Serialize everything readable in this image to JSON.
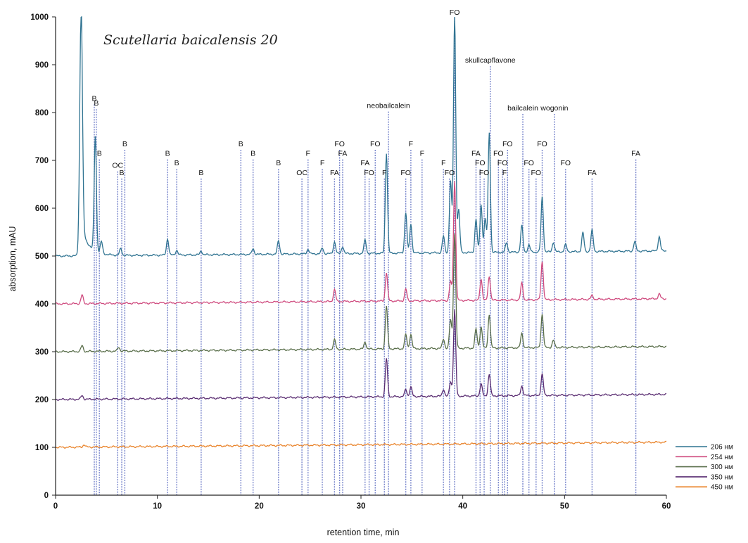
{
  "chart_data": {
    "type": "line",
    "title": "Scutellaria baicalensis 20",
    "xlabel": "retention time, min",
    "ylabel": "absorption, mAU",
    "xlim": [
      0,
      60
    ],
    "ylim": [
      0,
      1000
    ],
    "x_ticks": [
      0,
      10,
      20,
      30,
      40,
      50,
      60
    ],
    "y_ticks": [
      0,
      100,
      200,
      300,
      400,
      500,
      600,
      700,
      800,
      900,
      1000
    ],
    "legend_position": "bottom-right",
    "grid": false,
    "series": [
      {
        "name": "206 нм",
        "color": "#2f7391",
        "baseline": 500,
        "peaks": [
          [
            2.5,
            500
          ],
          [
            3.9,
            240
          ],
          [
            4.5,
            25
          ],
          [
            6.4,
            14
          ],
          [
            11.0,
            34
          ],
          [
            11.9,
            10
          ],
          [
            14.3,
            8
          ],
          [
            19.4,
            12
          ],
          [
            21.9,
            28
          ],
          [
            24.8,
            10
          ],
          [
            26.2,
            12
          ],
          [
            27.4,
            25
          ],
          [
            28.2,
            15
          ],
          [
            30.4,
            28
          ],
          [
            32.5,
            210
          ],
          [
            34.4,
            85
          ],
          [
            34.9,
            60
          ],
          [
            38.1,
            35
          ],
          [
            38.8,
            150
          ],
          [
            39.2,
            500
          ],
          [
            39.6,
            90
          ],
          [
            41.3,
            70
          ],
          [
            41.8,
            100
          ],
          [
            42.2,
            70
          ],
          [
            42.6,
            250
          ],
          [
            44.3,
            20
          ],
          [
            45.8,
            55
          ],
          [
            46.5,
            15
          ],
          [
            47.8,
            115
          ],
          [
            48.9,
            20
          ],
          [
            50.1,
            15
          ],
          [
            51.8,
            40
          ],
          [
            52.7,
            45
          ],
          [
            56.9,
            20
          ],
          [
            59.3,
            30
          ]
        ]
      },
      {
        "name": "254 нм",
        "color": "#cf4a7e",
        "baseline": 400,
        "peaks": [
          [
            2.6,
            18
          ],
          [
            27.4,
            25
          ],
          [
            32.5,
            60
          ],
          [
            34.4,
            25
          ],
          [
            38.8,
            40
          ],
          [
            39.2,
            250
          ],
          [
            41.8,
            45
          ],
          [
            42.6,
            50
          ],
          [
            45.8,
            35
          ],
          [
            47.8,
            80
          ],
          [
            52.7,
            8
          ],
          [
            59.3,
            10
          ]
        ]
      },
      {
        "name": "300 нм",
        "color": "#5a6f4b",
        "baseline": 300,
        "peaks": [
          [
            2.6,
            12
          ],
          [
            6.2,
            8
          ],
          [
            27.4,
            20
          ],
          [
            30.4,
            15
          ],
          [
            32.5,
            90
          ],
          [
            34.4,
            30
          ],
          [
            34.9,
            30
          ],
          [
            38.1,
            20
          ],
          [
            38.8,
            60
          ],
          [
            39.2,
            240
          ],
          [
            41.3,
            40
          ],
          [
            41.8,
            45
          ],
          [
            42.6,
            70
          ],
          [
            45.8,
            30
          ],
          [
            47.8,
            70
          ],
          [
            48.9,
            15
          ]
        ]
      },
      {
        "name": "350 нм",
        "color": "#5a2d72",
        "baseline": 200,
        "peaks": [
          [
            2.6,
            8
          ],
          [
            32.5,
            80
          ],
          [
            34.4,
            15
          ],
          [
            34.9,
            20
          ],
          [
            38.1,
            15
          ],
          [
            38.8,
            30
          ],
          [
            39.2,
            180
          ],
          [
            41.8,
            25
          ],
          [
            42.6,
            45
          ],
          [
            45.8,
            20
          ],
          [
            47.8,
            45
          ]
        ]
      },
      {
        "name": "450 нм",
        "color": "#e9832a",
        "baseline": 100,
        "peaks": [
          [
            2.8,
            5
          ]
        ]
      }
    ],
    "peak_markers": [
      {
        "x": 3.8,
        "label": "B",
        "top": 820
      },
      {
        "x": 4.0,
        "label": "B",
        "top": 810
      },
      {
        "x": 4.3,
        "label": "B",
        "top": 705
      },
      {
        "x": 6.1,
        "label": "OC",
        "top": 680
      },
      {
        "x": 6.5,
        "label": "B",
        "top": 665
      },
      {
        "x": 6.8,
        "label": "B",
        "top": 725
      },
      {
        "x": 11.0,
        "label": "B",
        "top": 705
      },
      {
        "x": 11.9,
        "label": "B",
        "top": 685
      },
      {
        "x": 14.3,
        "label": "B",
        "top": 665
      },
      {
        "x": 18.2,
        "label": "B",
        "top": 725
      },
      {
        "x": 19.4,
        "label": "B",
        "top": 705
      },
      {
        "x": 21.9,
        "label": "B",
        "top": 685
      },
      {
        "x": 24.2,
        "label": "OC",
        "top": 665
      },
      {
        "x": 24.8,
        "label": "F",
        "top": 705
      },
      {
        "x": 26.2,
        "label": "F",
        "top": 685
      },
      {
        "x": 27.4,
        "label": "FA",
        "top": 665
      },
      {
        "x": 27.9,
        "label": "FO",
        "top": 725
      },
      {
        "x": 28.2,
        "label": "FA",
        "top": 705
      },
      {
        "x": 30.4,
        "label": "FA",
        "top": 685
      },
      {
        "x": 30.8,
        "label": "FO",
        "top": 665
      },
      {
        "x": 31.4,
        "label": "FO",
        "top": 725
      },
      {
        "x": 32.3,
        "label": "F",
        "top": 665
      },
      {
        "x": 32.7,
        "label": "neobailcalein",
        "top": 805
      },
      {
        "x": 34.4,
        "label": "FO",
        "top": 665
      },
      {
        "x": 34.9,
        "label": "F",
        "top": 725
      },
      {
        "x": 36.0,
        "label": "F",
        "top": 705
      },
      {
        "x": 38.1,
        "label": "F",
        "top": 685
      },
      {
        "x": 38.7,
        "label": "FO",
        "top": 665
      },
      {
        "x": 39.2,
        "label": "FO",
        "top": 1000
      },
      {
        "x": 41.3,
        "label": "FA",
        "top": 705
      },
      {
        "x": 41.7,
        "label": "FO",
        "top": 685
      },
      {
        "x": 42.1,
        "label": "FO",
        "top": 665
      },
      {
        "x": 42.7,
        "label": "skullcapflavone",
        "top": 900
      },
      {
        "x": 43.5,
        "label": "FO",
        "top": 705
      },
      {
        "x": 43.9,
        "label": "FO",
        "top": 685
      },
      {
        "x": 44.1,
        "label": "F",
        "top": 665
      },
      {
        "x": 44.4,
        "label": "FO",
        "top": 725
      },
      {
        "x": 45.9,
        "label": "bailcalein",
        "top": 800
      },
      {
        "x": 46.5,
        "label": "FO",
        "top": 685
      },
      {
        "x": 47.2,
        "label": "FO",
        "top": 665
      },
      {
        "x": 47.8,
        "label": "FO",
        "top": 725
      },
      {
        "x": 49.0,
        "label": "wogonin",
        "top": 800
      },
      {
        "x": 50.1,
        "label": "FO",
        "top": 685
      },
      {
        "x": 52.7,
        "label": "FA",
        "top": 665
      },
      {
        "x": 57.0,
        "label": "FA",
        "top": 705
      }
    ]
  }
}
